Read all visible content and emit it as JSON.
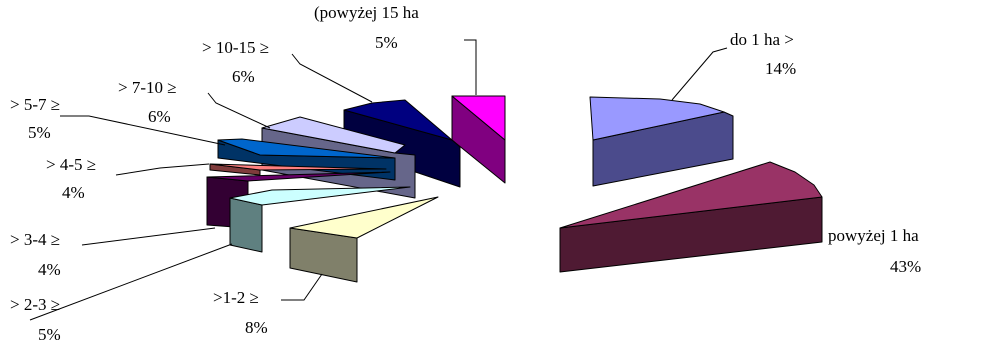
{
  "chart_data": {
    "type": "pie",
    "title": "",
    "style": "3d-exploded",
    "slices": [
      {
        "label": "do 1 ha >",
        "pct_label": "14%",
        "value": 14,
        "top": "#9999ff",
        "side": "#4b4b8c"
      },
      {
        "label": "powyżej 1 ha",
        "pct_label": "43%",
        "value": 43,
        "top": "#993366",
        "side": "#4f1a33"
      },
      {
        "label": ">1-2 ≥",
        "pct_label": "8%",
        "value": 8,
        "top": "#ffffcc",
        "side": "#80806a"
      },
      {
        "label": "> 2-3 ≥",
        "pct_label": "5%",
        "value": 5,
        "top": "#ccffff",
        "side": "#5f8080"
      },
      {
        "label": "> 3-4 ≥",
        "pct_label": "4%",
        "value": 4,
        "top": "#660066",
        "side": "#330033"
      },
      {
        "label": "> 4-5 ≥",
        "pct_label": "4%",
        "value": 4,
        "top": "#ff8080",
        "side": "#803c3c"
      },
      {
        "label": "> 5-7 ≥",
        "pct_label": "5%",
        "value": 5,
        "top": "#0066cc",
        "side": "#003366"
      },
      {
        "label": "> 7-10 ≥",
        "pct_label": "6%",
        "value": 6,
        "top": "#ccccff",
        "side": "#66668a"
      },
      {
        "label": "> 10-15 ≥",
        "pct_label": "6%",
        "value": 6,
        "top": "#000080",
        "side": "#000040"
      },
      {
        "label": "(powyżej 15 ha",
        "pct_label": "5%",
        "value": 5,
        "top": "#ff00ff",
        "side": "#800080"
      }
    ]
  }
}
